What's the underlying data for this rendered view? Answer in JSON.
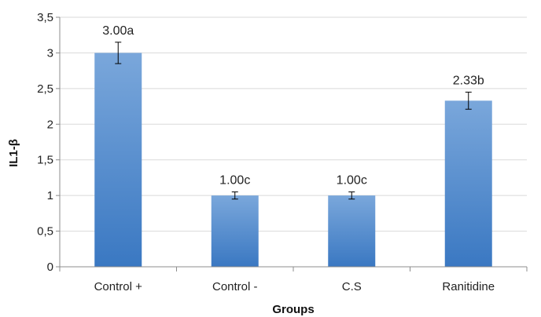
{
  "chart_data": {
    "type": "bar",
    "categories": [
      "Control +",
      "Control -",
      "C.S",
      "Ranitidine"
    ],
    "values": [
      3.0,
      1.0,
      1.0,
      2.33
    ],
    "error_bars": [
      0.15,
      0.05,
      0.05,
      0.12
    ],
    "data_labels": [
      "3.00a",
      "1.00c",
      "1.00c",
      "2.33b"
    ],
    "xlabel": "Groups",
    "ylabel": "IL1-β",
    "ylim": [
      0,
      3.5
    ],
    "yticks": [
      "0",
      "0,5",
      "1",
      "1,5",
      "2",
      "2,5",
      "3",
      "3,5"
    ],
    "grid": true,
    "legend": "none",
    "colors": {
      "bar_top": "#7aa7db",
      "bar_bottom": "#3a78c2",
      "grid": "#d9d9d9",
      "axis": "#8c8c8c"
    }
  }
}
